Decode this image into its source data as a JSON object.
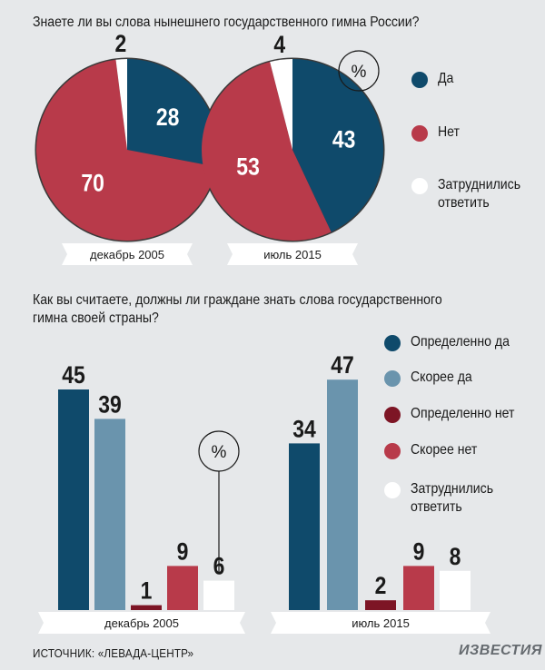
{
  "questions": {
    "q1": "Знаете ли вы слова нынешнего государственного гимна России?",
    "q2": "Как вы считаете, должны ли граждане знать слова государственного\nгимна своей страны?"
  },
  "colors": {
    "da": "#0f4a6b",
    "net": "#b83a4a",
    "hard": "#ffffff",
    "def_yes": "#0f4a6b",
    "rather_yes": "#6a94ad",
    "def_no": "#7d1525",
    "rather_no": "#b83a4a"
  },
  "legend1": [
    {
      "label": "Да",
      "color": "#0f4a6b"
    },
    {
      "label": "Нет",
      "color": "#b83a4a"
    },
    {
      "label": "Затруднились\nответить",
      "color": "#ffffff"
    }
  ],
  "legend2": [
    {
      "label": "Определенно да",
      "color": "#0f4a6b"
    },
    {
      "label": "Скорее да",
      "color": "#6a94ad"
    },
    {
      "label": "Определенно нет",
      "color": "#7d1525"
    },
    {
      "label": "Скорее нет",
      "color": "#b83a4a"
    },
    {
      "label": "Затруднились\nответить",
      "color": "#ffffff"
    }
  ],
  "percent_sign": "%",
  "source": "ИСТОЧНИК: «ЛЕВАДА-ЦЕНТР»",
  "brand": "ИЗВЕСТИЯ",
  "chart_data": [
    {
      "type": "pie",
      "title": "Знаете ли вы слова нынешнего государственного гимна России?",
      "series": [
        {
          "name": "декабрь 2005",
          "labels": [
            "Да",
            "Нет",
            "Затруднились ответить"
          ],
          "values": [
            28,
            70,
            2
          ]
        },
        {
          "name": "июль 2015",
          "labels": [
            "Да",
            "Нет",
            "Затруднились ответить"
          ],
          "values": [
            43,
            53,
            4
          ]
        }
      ]
    },
    {
      "type": "bar",
      "title": "Как вы считаете, должны ли граждане знать слова государственного гимна своей страны?",
      "categories": [
        "декабрь 2005",
        "июль 2015"
      ],
      "series": [
        {
          "name": "Определенно да",
          "values": [
            45,
            34
          ]
        },
        {
          "name": "Скорее да",
          "values": [
            39,
            47
          ]
        },
        {
          "name": "Определенно нет",
          "values": [
            1,
            2
          ]
        },
        {
          "name": "Скорее нет",
          "values": [
            9,
            9
          ]
        },
        {
          "name": "Затруднились ответить",
          "values": [
            6,
            8
          ]
        }
      ]
    }
  ]
}
